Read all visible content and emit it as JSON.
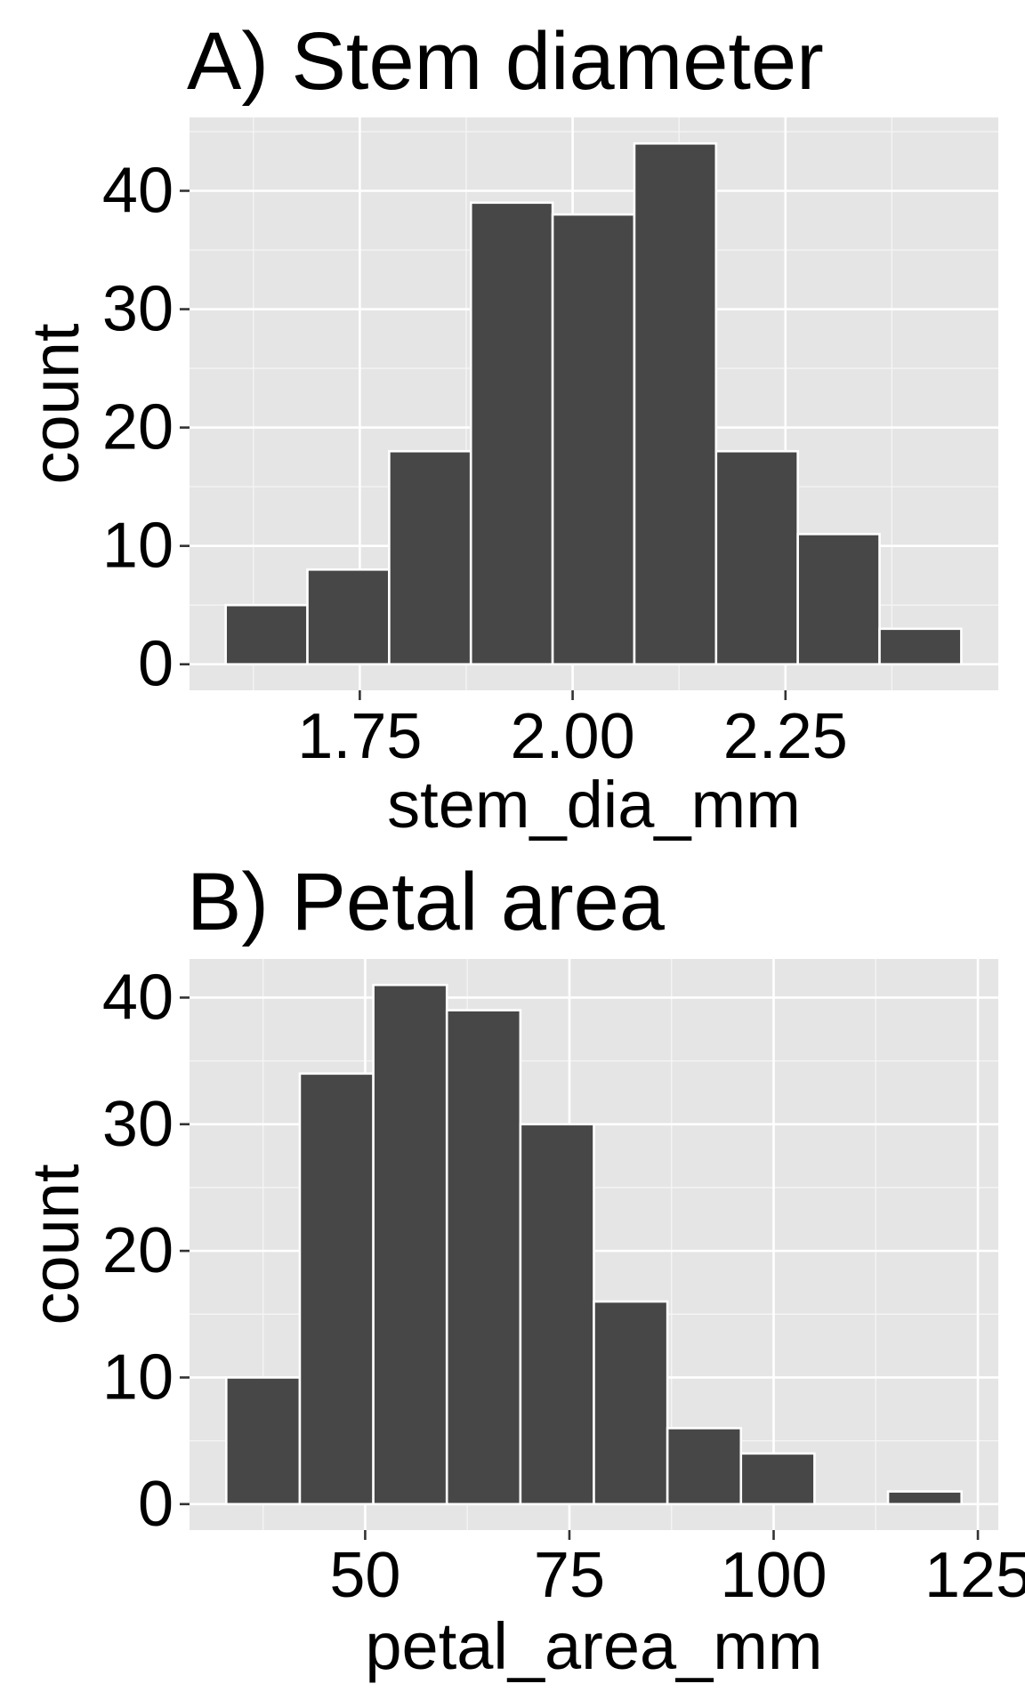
{
  "chart_data": [
    {
      "type": "bar",
      "title": "A) Stem diameter",
      "xlabel": "stem_dia_mm",
      "ylabel": "count",
      "bin_edges": [
        1.5925,
        1.6885,
        1.7845,
        1.8805,
        1.9765,
        2.0725,
        2.1685,
        2.2645,
        2.3605,
        2.4565
      ],
      "values": [
        5,
        8,
        18,
        39,
        38,
        44,
        18,
        11,
        3
      ],
      "xlim": [
        1.55,
        2.5
      ],
      "ylim": [
        -2.2,
        46.2
      ],
      "x_ticks": [
        1.75,
        2.0,
        2.25
      ],
      "x_tick_labels": [
        "1.75",
        "2.00",
        "2.25"
      ],
      "y_ticks": [
        0,
        10,
        20,
        30,
        40
      ],
      "y_tick_labels": [
        "0",
        "10",
        "20",
        "30",
        "40"
      ],
      "grid": true,
      "legend": "none"
    },
    {
      "type": "bar",
      "title": "B) Petal area",
      "xlabel": "petal_area_mm",
      "ylabel": "count",
      "bin_edges": [
        33,
        42,
        51,
        60,
        69,
        78,
        87,
        96,
        105,
        114,
        123
      ],
      "values": [
        10,
        34,
        41,
        39,
        30,
        16,
        6,
        4,
        0,
        1
      ],
      "xlim": [
        28.5,
        127.5
      ],
      "ylim": [
        -2.05,
        43.05
      ],
      "x_ticks": [
        50,
        75,
        100,
        125
      ],
      "x_tick_labels": [
        "50",
        "75",
        "100",
        "125"
      ],
      "y_ticks": [
        0,
        10,
        20,
        30,
        40
      ],
      "y_tick_labels": [
        "0",
        "10",
        "20",
        "30",
        "40"
      ],
      "grid": true,
      "legend": "none"
    }
  ],
  "colors": {
    "panel_background": "#e5e5e5",
    "bar_fill": "#474747",
    "bar_outline": "#ffffff",
    "gridline": "#ffffff"
  }
}
